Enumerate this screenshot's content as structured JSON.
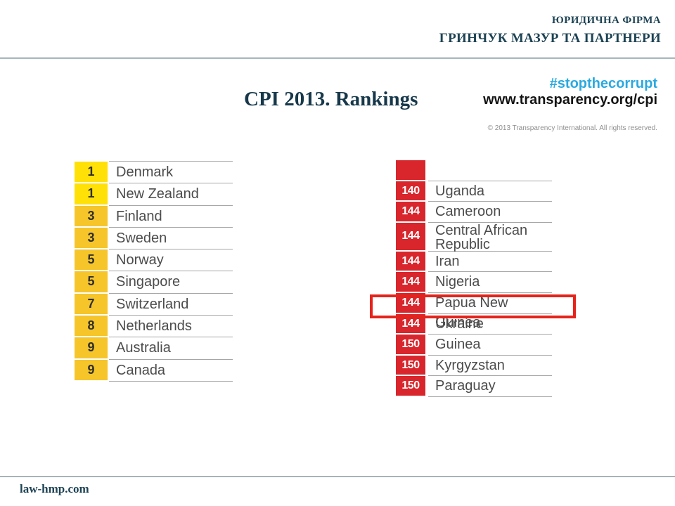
{
  "header": {
    "firm_type": "ЮРИДИЧНА ФІРМА",
    "firm_name": "ГРИНЧУК МАЗУР ТА ПАРТНЕРИ"
  },
  "title": "CPI 2013. Rankings",
  "transparency": {
    "hashtag": "#stopthecorrupt",
    "url": "www.transparency.org/cpi",
    "copyright": "© 2013 Transparency International. All rights reserved."
  },
  "left_table": {
    "rows": [
      {
        "rank": "1",
        "country": "Denmark",
        "tier": "bright"
      },
      {
        "rank": "1",
        "country": "New Zealand",
        "tier": "bright"
      },
      {
        "rank": "3",
        "country": "Finland",
        "tier": "gold"
      },
      {
        "rank": "3",
        "country": "Sweden",
        "tier": "gold"
      },
      {
        "rank": "5",
        "country": "Norway",
        "tier": "gold"
      },
      {
        "rank": "5",
        "country": "Singapore",
        "tier": "gold"
      },
      {
        "rank": "7",
        "country": "Switzerland",
        "tier": "gold"
      },
      {
        "rank": "8",
        "country": "Netherlands",
        "tier": "gold"
      },
      {
        "rank": "9",
        "country": "Australia",
        "tier": "gold"
      },
      {
        "rank": "9",
        "country": "Canada",
        "tier": "gold"
      }
    ]
  },
  "right_table": {
    "rows": [
      {
        "rank": "140",
        "country": "Uganda"
      },
      {
        "rank": "144",
        "country": "Cameroon"
      },
      {
        "rank": "144",
        "country": "Central African Republic",
        "tall": true
      },
      {
        "rank": "144",
        "country": "Iran"
      },
      {
        "rank": "144",
        "country": "Nigeria"
      },
      {
        "rank": "144",
        "country": "Papua New Guinea"
      },
      {
        "rank": "144",
        "country": "Ukraine",
        "highlighted": true
      },
      {
        "rank": "150",
        "country": "Guinea"
      },
      {
        "rank": "150",
        "country": "Kyrgyzstan"
      },
      {
        "rank": "150",
        "country": "Paraguay"
      }
    ],
    "highlighted_country": "Ukraine"
  },
  "footer": {
    "site": "law-hmp.com"
  },
  "colors": {
    "accent_teal": "#1d4354",
    "hashtag_cyan": "#2aa9e0",
    "rank_red": "#d8262c",
    "highlight_red": "#e6231a",
    "rank_yellow_bright": "#ffe108",
    "rank_yellow_gold": "#f5c52a"
  }
}
